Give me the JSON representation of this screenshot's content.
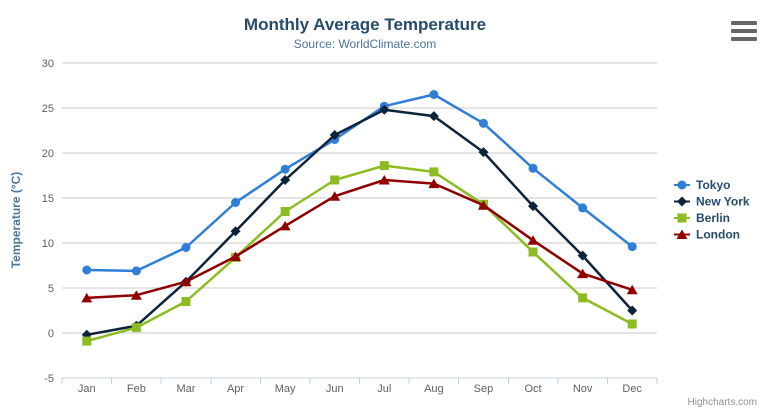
{
  "chart": {
    "title": "Monthly Average Temperature",
    "subtitle": "Source: WorldClimate.com",
    "y_axis_title": "Temperature (°C)",
    "credits": "Highcharts.com",
    "export_icon": "hamburger-icon",
    "legend": [
      "Tokyo",
      "New York",
      "Berlin",
      "London"
    ]
  },
  "chart_data": {
    "type": "line",
    "title": "Monthly Average Temperature",
    "subtitle": "Source: WorldClimate.com",
    "xlabel": "",
    "ylabel": "Temperature (°C)",
    "categories": [
      "Jan",
      "Feb",
      "Mar",
      "Apr",
      "May",
      "Jun",
      "Jul",
      "Aug",
      "Sep",
      "Oct",
      "Nov",
      "Dec"
    ],
    "series": [
      {
        "name": "Tokyo",
        "color": "#2f7ed8",
        "marker": "circle",
        "values": [
          7.0,
          6.9,
          9.5,
          14.5,
          18.2,
          21.5,
          25.2,
          26.5,
          23.3,
          18.3,
          13.9,
          9.6
        ]
      },
      {
        "name": "New York",
        "color": "#0d233a",
        "marker": "diamond",
        "values": [
          -0.2,
          0.8,
          5.7,
          11.3,
          17.0,
          22.0,
          24.8,
          24.1,
          20.1,
          14.1,
          8.6,
          2.5
        ]
      },
      {
        "name": "Berlin",
        "color": "#8bbc21",
        "marker": "square",
        "values": [
          -0.9,
          0.6,
          3.5,
          8.4,
          13.5,
          17.0,
          18.6,
          17.9,
          14.3,
          9.0,
          3.9,
          1.0
        ]
      },
      {
        "name": "London",
        "color": "#910000",
        "marker": "triangle",
        "values": [
          3.9,
          4.2,
          5.7,
          8.5,
          11.9,
          15.2,
          17.0,
          16.6,
          14.2,
          10.3,
          6.6,
          4.8
        ]
      }
    ],
    "ylim": [
      -5,
      30
    ],
    "y_ticks": [
      -5,
      0,
      5,
      10,
      15,
      20,
      25,
      30
    ],
    "grid": true,
    "legend_position": "right",
    "credits": "Highcharts.com"
  }
}
